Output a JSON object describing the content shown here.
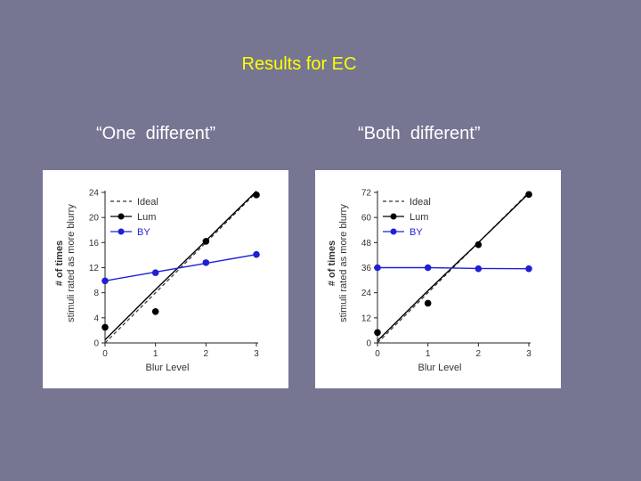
{
  "slide": {
    "title": "Results for EC",
    "subtitle_left": "“One  different”",
    "subtitle_right": "“Both  different”"
  },
  "colors": {
    "background": "#767693",
    "title": "#ffff00",
    "lum": "#000000",
    "by": "#1f1fd6"
  },
  "chart_data": [
    {
      "type": "line",
      "xlabel": "Blur Level",
      "ylabel_lines": [
        "# of times",
        "stimuli rated as more blurry"
      ],
      "x": [
        0,
        1,
        2,
        3
      ],
      "xticks": [
        0,
        1,
        2,
        3
      ],
      "ylim": [
        0,
        24
      ],
      "yticks": [
        0,
        4,
        8,
        12,
        16,
        20,
        24
      ],
      "legend_position": "top-left",
      "grid": false,
      "series": [
        {
          "name": "Ideal",
          "style": "dashed",
          "values": [
            0,
            8,
            16,
            24
          ]
        },
        {
          "name": "Lum",
          "style": "solid-markers",
          "values": [
            2.5,
            5,
            16.2,
            23.6
          ],
          "fit": [
            0.5,
            8.5,
            16.3,
            24.2
          ]
        },
        {
          "name": "BY",
          "style": "solid-markers",
          "values": [
            9.9,
            11.2,
            12.8,
            14.1
          ],
          "fit": [
            9.9,
            11.3,
            12.7,
            14.1
          ]
        }
      ]
    },
    {
      "type": "line",
      "xlabel": "Blur Level",
      "ylabel_lines": [
        "# of times",
        "stimuli rated as more blurry"
      ],
      "x": [
        0,
        1,
        2,
        3
      ],
      "xticks": [
        0,
        1,
        2,
        3
      ],
      "ylim": [
        0,
        72
      ],
      "yticks": [
        0,
        12,
        24,
        36,
        48,
        60,
        72
      ],
      "legend_position": "top-left",
      "grid": false,
      "series": [
        {
          "name": "Ideal",
          "style": "dashed",
          "values": [
            0,
            24,
            48,
            72
          ]
        },
        {
          "name": "Lum",
          "style": "solid-markers",
          "values": [
            5,
            19,
            47,
            71
          ],
          "fit": [
            1,
            25,
            48,
            71.5
          ]
        },
        {
          "name": "BY",
          "style": "solid-markers",
          "values": [
            36,
            36,
            35.5,
            35.5
          ],
          "fit": [
            36,
            36,
            35.6,
            35.5
          ]
        }
      ]
    }
  ]
}
